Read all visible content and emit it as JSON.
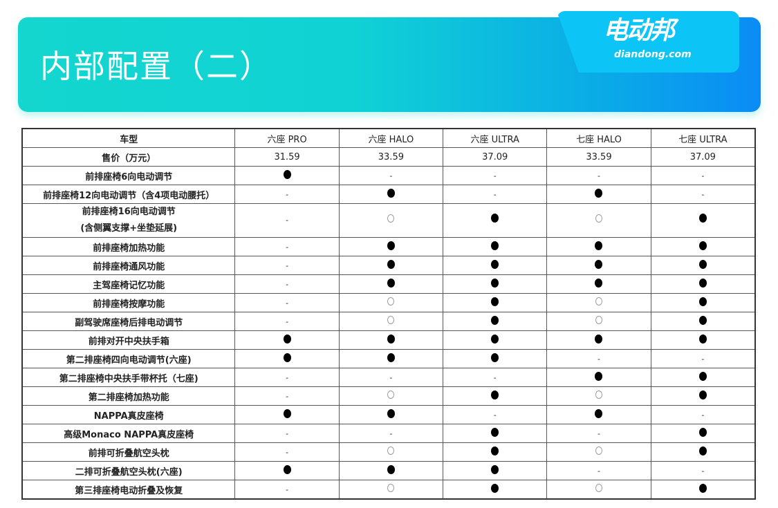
{
  "title": "内部配置（二）",
  "logo": {
    "cn": "电动邦",
    "en": "diandong.com"
  },
  "table": {
    "header_label": "车型",
    "models": [
      "六座 PRO",
      "六座 HALO",
      "六座 ULTRA",
      "七座 HALO",
      "七座 ULTRA"
    ],
    "price_label": "售价（万元）",
    "prices": [
      "31.59",
      "33.59",
      "37.09",
      "33.59",
      "37.09"
    ],
    "legend": {
      "F": "standard (●)",
      "O": "optional (○)",
      "-": "not available"
    },
    "rows": [
      {
        "feature": "前排座椅6向电动调节",
        "values": [
          "F",
          "-",
          "-",
          "-",
          "-"
        ]
      },
      {
        "feature": "前排座椅12向电动调节（含4项电动腰托）",
        "values": [
          "-",
          "F",
          "-",
          "F",
          "-"
        ]
      },
      {
        "feature": "前排座椅16向电动调节",
        "feature2": "(含侧翼支撑+坐垫延展)",
        "values": [
          "-",
          "O",
          "F",
          "O",
          "F"
        ]
      },
      {
        "feature": "前排座椅加热功能",
        "values": [
          "-",
          "F",
          "F",
          "F",
          "F"
        ]
      },
      {
        "feature": "前排座椅通风功能",
        "values": [
          "-",
          "F",
          "F",
          "F",
          "F"
        ]
      },
      {
        "feature": "主驾座椅记忆功能",
        "values": [
          "-",
          "F",
          "F",
          "F",
          "F"
        ]
      },
      {
        "feature": "前排座椅按摩功能",
        "values": [
          "-",
          "O",
          "F",
          "O",
          "F"
        ]
      },
      {
        "feature": "副驾驶席座椅后排电动调节",
        "values": [
          "-",
          "O",
          "F",
          "O",
          "F"
        ]
      },
      {
        "feature": "前排对开中央扶手箱",
        "values": [
          "F",
          "F",
          "F",
          "F",
          "F"
        ]
      },
      {
        "feature": "第二排座椅四向电动调节(六座)",
        "values": [
          "F",
          "F",
          "F",
          "-",
          "-"
        ]
      },
      {
        "feature": "第二排座椅中央扶手带杯托（七座)",
        "values": [
          "-",
          "-",
          "-",
          "F",
          "F"
        ]
      },
      {
        "feature": "第二排座椅加热功能",
        "values": [
          "-",
          "O",
          "F",
          "O",
          "F"
        ]
      },
      {
        "feature": "NAPPA真皮座椅",
        "values": [
          "F",
          "F",
          "-",
          "F",
          "-"
        ]
      },
      {
        "feature": "高级Monaco NAPPA真皮座椅",
        "values": [
          "-",
          "-",
          "F",
          "-",
          "F"
        ]
      },
      {
        "feature": "前排可折叠航空头枕",
        "values": [
          "-",
          "O",
          "F",
          "O",
          "F"
        ]
      },
      {
        "feature": "二排可折叠航空头枕(六座)",
        "values": [
          "F",
          "F",
          "F",
          "-",
          "-"
        ]
      },
      {
        "feature": "第三排座椅电动折叠及恢复",
        "values": [
          "-",
          "O",
          "F",
          "O",
          "F"
        ]
      }
    ]
  }
}
